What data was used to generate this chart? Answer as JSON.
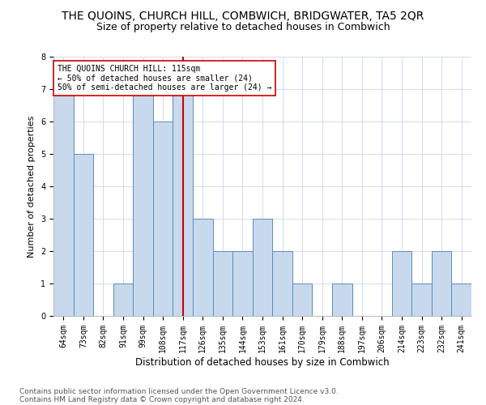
{
  "title": "THE QUOINS, CHURCH HILL, COMBWICH, BRIDGWATER, TA5 2QR",
  "subtitle": "Size of property relative to detached houses in Combwich",
  "xlabel": "Distribution of detached houses by size in Combwich",
  "ylabel": "Number of detached properties",
  "categories": [
    "64sqm",
    "73sqm",
    "82sqm",
    "91sqm",
    "99sqm",
    "108sqm",
    "117sqm",
    "126sqm",
    "135sqm",
    "144sqm",
    "153sqm",
    "161sqm",
    "170sqm",
    "179sqm",
    "188sqm",
    "197sqm",
    "206sqm",
    "214sqm",
    "223sqm",
    "232sqm",
    "241sqm"
  ],
  "values": [
    7,
    5,
    0,
    1,
    7,
    6,
    7,
    3,
    2,
    2,
    3,
    2,
    1,
    0,
    1,
    0,
    0,
    2,
    1,
    2,
    1
  ],
  "bar_color": "#c8d9ee",
  "bar_edge_color": "#5b8db8",
  "property_line_index": 6,
  "property_line_color": "#cc0000",
  "annotation_text": "THE QUOINS CHURCH HILL: 115sqm\n← 50% of detached houses are smaller (24)\n50% of semi-detached houses are larger (24) →",
  "annotation_box_color": "#ffffff",
  "annotation_box_edge": "#cc0000",
  "ylim": [
    0,
    8
  ],
  "yticks": [
    0,
    1,
    2,
    3,
    4,
    5,
    6,
    7,
    8
  ],
  "footer_line1": "Contains HM Land Registry data © Crown copyright and database right 2024.",
  "footer_line2": "Contains public sector information licensed under the Open Government Licence v3.0.",
  "background_color": "#ffffff",
  "grid_color": "#ccd6e8",
  "title_fontsize": 10,
  "subtitle_fontsize": 9,
  "tick_fontsize": 7,
  "ylabel_fontsize": 8,
  "xlabel_fontsize": 8.5,
  "annotation_fontsize": 7,
  "footer_fontsize": 6.5
}
